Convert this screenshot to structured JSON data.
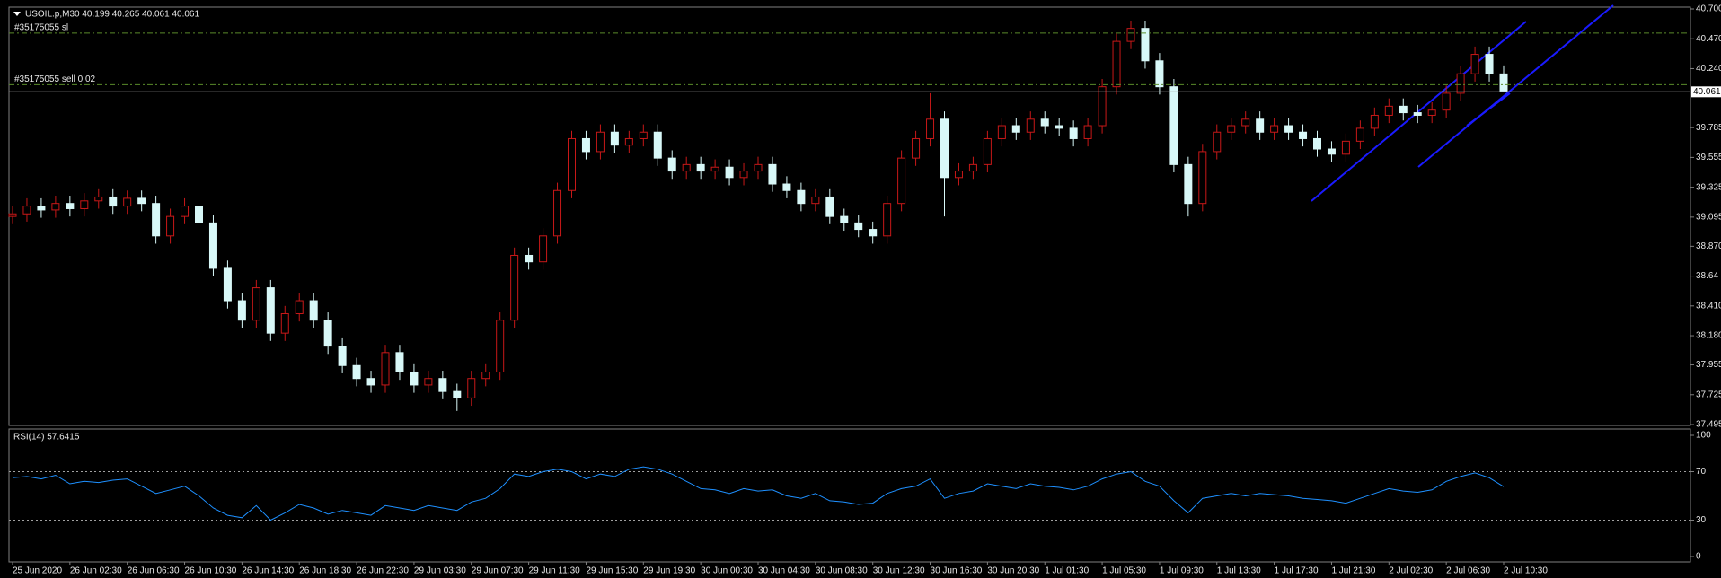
{
  "chart_data": [
    {
      "type": "candlestick",
      "title": "USOIL.p,M30  40.199 40.265 40.061 40.061",
      "categories": [
        "25 Jun 2020",
        null,
        null,
        null,
        "26 Jun 02:30",
        null,
        null,
        null,
        "26 Jun 06:30",
        null,
        null,
        null,
        "26 Jun 10:30",
        null,
        null,
        null,
        "26 Jun 14:30",
        null,
        null,
        null,
        "26 Jun 18:30",
        null,
        null,
        null,
        "26 Jun 22:30",
        null,
        null,
        null,
        "29 Jun 03:30",
        null,
        null,
        null,
        "29 Jun 07:30",
        null,
        null,
        null,
        "29 Jun 11:30",
        null,
        null,
        null,
        "29 Jun 15:30",
        null,
        null,
        null,
        "29 Jun 19:30",
        null,
        null,
        null,
        "30 Jun 00:30",
        null,
        null,
        null,
        "30 Jun 04:30",
        null,
        null,
        null,
        "30 Jun 08:30",
        null,
        null,
        null,
        "30 Jun 12:30",
        null,
        null,
        null,
        "30 Jun 16:30",
        null,
        null,
        null,
        "30 Jun 20:30",
        null,
        null,
        null,
        "1 Jul 01:30",
        null,
        null,
        null,
        "1 Jul 05:30",
        null,
        null,
        null,
        "1 Jul 09:30",
        null,
        null,
        null,
        "1 Jul 13:30",
        null,
        null,
        null,
        "1 Jul 17:30",
        null,
        null,
        null,
        "1 Jul 21:30",
        null,
        null,
        null,
        "2 Jul 02:30",
        null,
        null,
        null,
        "2 Jul 06:30",
        null,
        null,
        null,
        "2 Jul 10:30"
      ],
      "open": [
        39.1,
        39.12,
        39.18,
        39.15,
        39.2,
        39.16,
        39.22,
        39.25,
        39.18,
        39.24,
        39.2,
        38.95,
        39.1,
        39.18,
        39.05,
        38.7,
        38.45,
        38.3,
        38.55,
        38.2,
        38.35,
        38.45,
        38.3,
        38.1,
        37.95,
        37.85,
        37.8,
        38.05,
        37.9,
        37.8,
        37.85,
        37.75,
        37.7,
        37.85,
        37.9,
        38.3,
        38.8,
        38.75,
        38.95,
        39.3,
        39.7,
        39.6,
        39.75,
        39.65,
        39.7,
        39.75,
        39.55,
        39.45,
        39.5,
        39.45,
        39.48,
        39.4,
        39.45,
        39.5,
        39.35,
        39.3,
        39.2,
        39.25,
        39.1,
        39.05,
        39.0,
        38.95,
        39.2,
        39.55,
        39.7,
        39.85,
        39.4,
        39.45,
        39.5,
        39.7,
        39.8,
        39.75,
        39.85,
        39.8,
        39.78,
        39.7,
        39.8,
        40.1,
        40.45,
        40.55,
        40.3,
        40.1,
        39.5,
        39.2,
        39.6,
        39.75,
        39.8,
        39.85,
        39.75,
        39.8,
        39.75,
        39.7,
        39.62,
        39.58,
        39.68,
        39.78,
        39.88,
        39.95,
        39.9,
        39.88,
        39.92,
        40.05,
        40.2,
        40.35,
        40.199
      ],
      "high": [
        39.18,
        39.24,
        39.24,
        39.26,
        39.26,
        39.28,
        39.31,
        39.31,
        39.3,
        39.3,
        39.26,
        39.16,
        39.24,
        39.24,
        39.11,
        38.76,
        38.51,
        38.61,
        38.61,
        38.41,
        38.51,
        38.51,
        38.36,
        38.16,
        38.01,
        37.91,
        38.11,
        38.11,
        37.96,
        37.91,
        37.91,
        37.81,
        37.91,
        37.96,
        38.36,
        38.86,
        38.86,
        39.01,
        39.36,
        39.76,
        39.76,
        39.81,
        39.81,
        39.76,
        39.81,
        39.81,
        39.61,
        39.56,
        39.56,
        39.54,
        39.54,
        39.51,
        39.56,
        39.56,
        39.41,
        39.36,
        39.31,
        39.31,
        39.16,
        39.11,
        39.06,
        39.26,
        39.61,
        39.76,
        40.05,
        39.91,
        39.51,
        39.56,
        39.76,
        39.86,
        39.86,
        39.91,
        39.91,
        39.86,
        39.84,
        39.86,
        40.16,
        40.51,
        40.61,
        40.61,
        40.36,
        40.16,
        39.56,
        39.66,
        39.81,
        39.86,
        39.91,
        39.91,
        39.86,
        39.86,
        39.81,
        39.76,
        39.68,
        39.74,
        39.84,
        39.94,
        40.01,
        40.01,
        39.96,
        39.98,
        40.11,
        40.26,
        40.41,
        40.41,
        40.265
      ],
      "low": [
        39.04,
        39.06,
        39.09,
        39.09,
        39.1,
        39.1,
        39.16,
        39.12,
        39.12,
        39.14,
        38.89,
        38.89,
        39.04,
        38.99,
        38.64,
        38.39,
        38.24,
        38.24,
        38.14,
        38.14,
        38.29,
        38.24,
        38.04,
        37.89,
        37.79,
        37.74,
        37.74,
        37.84,
        37.74,
        37.74,
        37.69,
        37.6,
        37.64,
        37.79,
        37.84,
        38.24,
        38.69,
        38.69,
        38.89,
        39.24,
        39.54,
        39.54,
        39.59,
        39.59,
        39.64,
        39.49,
        39.39,
        39.39,
        39.39,
        39.39,
        39.34,
        39.34,
        39.39,
        39.29,
        39.24,
        39.14,
        39.14,
        39.04,
        38.99,
        38.94,
        38.89,
        38.89,
        39.14,
        39.49,
        39.64,
        39.1,
        39.34,
        39.39,
        39.44,
        39.64,
        39.69,
        39.69,
        39.74,
        39.72,
        39.64,
        39.64,
        39.74,
        40.04,
        40.39,
        40.24,
        40.04,
        39.44,
        39.1,
        39.14,
        39.54,
        39.69,
        39.74,
        39.69,
        39.69,
        39.69,
        39.64,
        39.56,
        39.52,
        39.52,
        39.62,
        39.72,
        39.82,
        39.84,
        39.82,
        39.82,
        39.86,
        39.99,
        40.14,
        40.14,
        40.061
      ],
      "close": [
        39.12,
        39.18,
        39.15,
        39.2,
        39.16,
        39.22,
        39.25,
        39.18,
        39.24,
        39.2,
        38.95,
        39.1,
        39.18,
        39.05,
        38.7,
        38.45,
        38.3,
        38.55,
        38.2,
        38.35,
        38.45,
        38.3,
        38.1,
        37.95,
        37.85,
        37.8,
        38.05,
        37.9,
        37.8,
        37.85,
        37.75,
        37.7,
        37.85,
        37.9,
        38.3,
        38.8,
        38.75,
        38.95,
        39.3,
        39.7,
        39.6,
        39.75,
        39.65,
        39.7,
        39.75,
        39.55,
        39.45,
        39.5,
        39.45,
        39.48,
        39.4,
        39.45,
        39.5,
        39.35,
        39.3,
        39.2,
        39.25,
        39.1,
        39.05,
        39.0,
        38.95,
        39.2,
        39.55,
        39.7,
        39.85,
        39.4,
        39.45,
        39.5,
        39.7,
        39.8,
        39.75,
        39.85,
        39.8,
        39.78,
        39.7,
        39.8,
        40.1,
        40.45,
        40.55,
        40.3,
        40.1,
        39.5,
        39.2,
        39.6,
        39.75,
        39.8,
        39.85,
        39.75,
        39.8,
        39.75,
        39.7,
        39.62,
        39.58,
        39.68,
        39.78,
        39.88,
        39.95,
        39.9,
        39.88,
        39.92,
        40.05,
        40.2,
        40.35,
        40.199,
        40.061
      ],
      "up_color": "#c81818",
      "down_color": "#d8f8f8",
      "ylim": [
        37.495,
        40.7
      ],
      "yticks": [
        {
          "value": 40.7,
          "label": "40.700"
        },
        {
          "value": 40.47,
          "label": "40.470"
        },
        {
          "value": 40.24,
          "label": "40.240"
        },
        39.785,
        39.555,
        39.325,
        39.095,
        {
          "value": 38.87,
          "label": "38.870"
        },
        38.64,
        {
          "value": 38.41,
          "label": "38.410"
        },
        {
          "value": 38.18,
          "label": "38.180"
        },
        37.955,
        37.725,
        37.495
      ],
      "current_price": 40.061,
      "levels": [
        {
          "label": "#35175055 sl",
          "value": 40.514,
          "color": "#5a8a2a"
        },
        {
          "label": "#35175055 sell 0.02",
          "value": 40.116,
          "color": "#5a8a2a"
        }
      ]
    },
    {
      "type": "line",
      "title": "RSI(14) 57.6415",
      "color": "#1e90ff",
      "values": [
        65,
        66,
        64,
        67,
        60,
        62,
        61,
        63,
        64,
        58,
        52,
        55,
        58,
        50,
        40,
        34,
        32,
        42,
        30,
        36,
        43,
        40,
        35,
        38,
        36,
        34,
        42,
        40,
        38,
        42,
        40,
        38,
        45,
        48,
        56,
        68,
        66,
        70,
        72,
        70,
        64,
        68,
        66,
        72,
        74,
        72,
        68,
        62,
        56,
        55,
        52,
        56,
        54,
        55,
        50,
        48,
        52,
        46,
        45,
        43,
        44,
        52,
        56,
        58,
        64,
        48,
        52,
        54,
        60,
        58,
        56,
        60,
        58,
        57,
        55,
        58,
        64,
        68,
        70,
        62,
        58,
        46,
        36,
        48,
        50,
        52,
        50,
        52,
        51,
        50,
        48,
        47,
        46,
        44,
        48,
        52,
        56,
        54,
        53,
        55,
        62,
        66,
        69,
        65,
        57.6415
      ],
      "ylim": [
        0,
        100
      ],
      "yticks": [
        0,
        30,
        70,
        100
      ]
    }
  ]
}
